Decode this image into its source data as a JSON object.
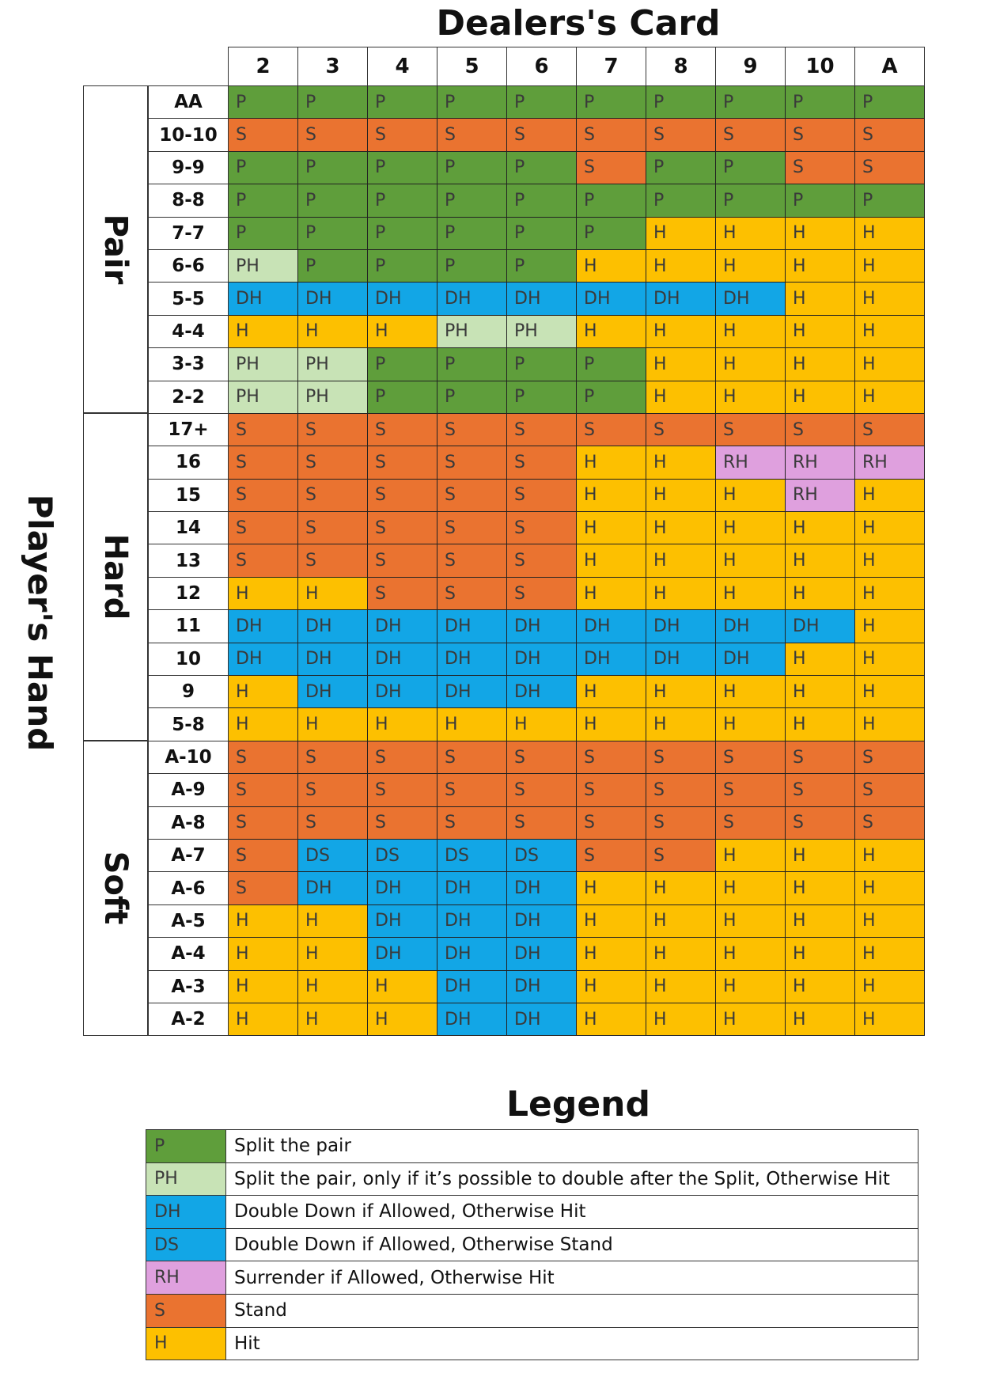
{
  "title": "Dealers's Card",
  "players_hand_label": "Player's Hand",
  "dealer_columns": [
    "2",
    "3",
    "4",
    "5",
    "6",
    "7",
    "8",
    "9",
    "10",
    "A"
  ],
  "colors": {
    "P": "#5f9e3b",
    "PH": "#c8e3b6",
    "DH": "#12a6e6",
    "DS": "#12a6e6",
    "RH": "#dfa0de",
    "S": "#ea7330",
    "H": "#fdc000"
  },
  "groups": [
    {
      "label": "Pair",
      "rows": [
        {
          "hand": "AA",
          "cells": [
            "P",
            "P",
            "P",
            "P",
            "P",
            "P",
            "P",
            "P",
            "P",
            "P"
          ]
        },
        {
          "hand": "10-10",
          "cells": [
            "S",
            "S",
            "S",
            "S",
            "S",
            "S",
            "S",
            "S",
            "S",
            "S"
          ]
        },
        {
          "hand": "9-9",
          "cells": [
            "P",
            "P",
            "P",
            "P",
            "P",
            "S",
            "P",
            "P",
            "S",
            "S"
          ]
        },
        {
          "hand": "8-8",
          "cells": [
            "P",
            "P",
            "P",
            "P",
            "P",
            "P",
            "P",
            "P",
            "P",
            "P"
          ]
        },
        {
          "hand": "7-7",
          "cells": [
            "P",
            "P",
            "P",
            "P",
            "P",
            "P",
            "H",
            "H",
            "H",
            "H"
          ]
        },
        {
          "hand": "6-6",
          "cells": [
            "PH",
            "P",
            "P",
            "P",
            "P",
            "H",
            "H",
            "H",
            "H",
            "H"
          ]
        },
        {
          "hand": "5-5",
          "cells": [
            "DH",
            "DH",
            "DH",
            "DH",
            "DH",
            "DH",
            "DH",
            "DH",
            "H",
            "H"
          ]
        },
        {
          "hand": "4-4",
          "cells": [
            "H",
            "H",
            "H",
            "PH",
            "PH",
            "H",
            "H",
            "H",
            "H",
            "H"
          ]
        },
        {
          "hand": "3-3",
          "cells": [
            "PH",
            "PH",
            "P",
            "P",
            "P",
            "P",
            "H",
            "H",
            "H",
            "H"
          ]
        },
        {
          "hand": "2-2",
          "cells": [
            "PH",
            "PH",
            "P",
            "P",
            "P",
            "P",
            "H",
            "H",
            "H",
            "H"
          ]
        }
      ]
    },
    {
      "label": "Hard",
      "rows": [
        {
          "hand": "17+",
          "cells": [
            "S",
            "S",
            "S",
            "S",
            "S",
            "S",
            "S",
            "S",
            "S",
            "S"
          ]
        },
        {
          "hand": "16",
          "cells": [
            "S",
            "S",
            "S",
            "S",
            "S",
            "H",
            "H",
            "RH",
            "RH",
            "RH"
          ]
        },
        {
          "hand": "15",
          "cells": [
            "S",
            "S",
            "S",
            "S",
            "S",
            "H",
            "H",
            "H",
            "RH",
            "H"
          ]
        },
        {
          "hand": "14",
          "cells": [
            "S",
            "S",
            "S",
            "S",
            "S",
            "H",
            "H",
            "H",
            "H",
            "H"
          ]
        },
        {
          "hand": "13",
          "cells": [
            "S",
            "S",
            "S",
            "S",
            "S",
            "H",
            "H",
            "H",
            "H",
            "H"
          ]
        },
        {
          "hand": "12",
          "cells": [
            "H",
            "H",
            "S",
            "S",
            "S",
            "H",
            "H",
            "H",
            "H",
            "H"
          ]
        },
        {
          "hand": "11",
          "cells": [
            "DH",
            "DH",
            "DH",
            "DH",
            "DH",
            "DH",
            "DH",
            "DH",
            "DH",
            "H"
          ]
        },
        {
          "hand": "10",
          "cells": [
            "DH",
            "DH",
            "DH",
            "DH",
            "DH",
            "DH",
            "DH",
            "DH",
            "H",
            "H"
          ]
        },
        {
          "hand": "9",
          "cells": [
            "H",
            "DH",
            "DH",
            "DH",
            "DH",
            "H",
            "H",
            "H",
            "H",
            "H"
          ]
        },
        {
          "hand": "5-8",
          "cells": [
            "H",
            "H",
            "H",
            "H",
            "H",
            "H",
            "H",
            "H",
            "H",
            "H"
          ]
        }
      ]
    },
    {
      "label": "Soft",
      "rows": [
        {
          "hand": "A-10",
          "cells": [
            "S",
            "S",
            "S",
            "S",
            "S",
            "S",
            "S",
            "S",
            "S",
            "S"
          ]
        },
        {
          "hand": "A-9",
          "cells": [
            "S",
            "S",
            "S",
            "S",
            "S",
            "S",
            "S",
            "S",
            "S",
            "S"
          ]
        },
        {
          "hand": "A-8",
          "cells": [
            "S",
            "S",
            "S",
            "S",
            "S",
            "S",
            "S",
            "S",
            "S",
            "S"
          ]
        },
        {
          "hand": "A-7",
          "cells": [
            "S",
            "DS",
            "DS",
            "DS",
            "DS",
            "S",
            "S",
            "H",
            "H",
            "H"
          ]
        },
        {
          "hand": "A-6",
          "cells": [
            "S",
            "DH",
            "DH",
            "DH",
            "DH",
            "H",
            "H",
            "H",
            "H",
            "H"
          ]
        },
        {
          "hand": "A-5",
          "cells": [
            "H",
            "H",
            "DH",
            "DH",
            "DH",
            "H",
            "H",
            "H",
            "H",
            "H"
          ]
        },
        {
          "hand": "A-4",
          "cells": [
            "H",
            "H",
            "DH",
            "DH",
            "DH",
            "H",
            "H",
            "H",
            "H",
            "H"
          ]
        },
        {
          "hand": "A-3",
          "cells": [
            "H",
            "H",
            "H",
            "DH",
            "DH",
            "H",
            "H",
            "H",
            "H",
            "H"
          ]
        },
        {
          "hand": "A-2",
          "cells": [
            "H",
            "H",
            "H",
            "DH",
            "DH",
            "H",
            "H",
            "H",
            "H",
            "H"
          ]
        }
      ]
    }
  ],
  "legend": {
    "title": "Legend",
    "items": [
      {
        "code": "P",
        "description": "Split the pair"
      },
      {
        "code": "PH",
        "description": "Split the pair, only if it’s possible to double after the Split, Otherwise Hit"
      },
      {
        "code": "DH",
        "description": "Double Down if Allowed, Otherwise Hit"
      },
      {
        "code": "DS",
        "description": "Double Down if Allowed, Otherwise Stand"
      },
      {
        "code": "RH",
        "description": "Surrender if Allowed, Otherwise Hit"
      },
      {
        "code": "S",
        "description": "Stand"
      },
      {
        "code": "H",
        "description": "Hit"
      }
    ]
  }
}
